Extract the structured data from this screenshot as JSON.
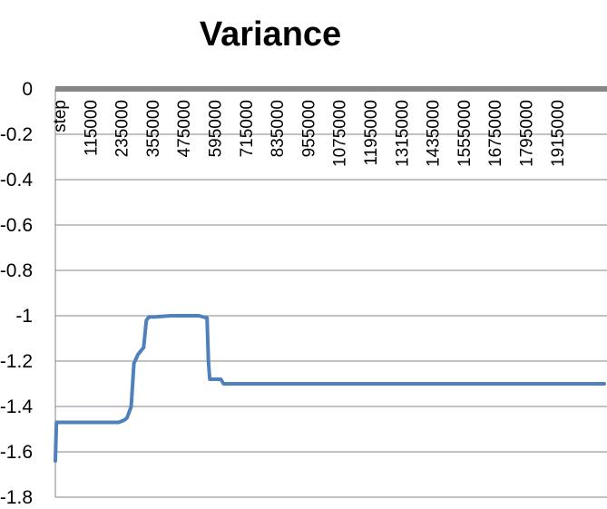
{
  "chart_data": {
    "type": "line",
    "title": "Variance",
    "xlabel": "",
    "ylabel": "",
    "ylim": [
      -1.8,
      0
    ],
    "y_ticks": [
      "0",
      "-0.2",
      "-0.4",
      "-0.6",
      "-0.8",
      "-1",
      "-1.2",
      "-1.4",
      "-1.6",
      "-1.8"
    ],
    "x_category_label": "step",
    "x_ticks": [
      "115000",
      "235000",
      "355000",
      "475000",
      "595000",
      "715000",
      "835000",
      "955000",
      "1075000",
      "1195000",
      "1315000",
      "1435000",
      "1555000",
      "1675000",
      "1795000",
      "1915000"
    ],
    "xlim": [
      0,
      2000000
    ],
    "grid": true,
    "legend": "none",
    "colors": {
      "series": "#4f81bd",
      "axis": "#868686",
      "grid": "#868686"
    },
    "series": [
      {
        "x": [
          0,
          4000,
          8000,
          30000,
          100000,
          200000,
          230000,
          250000,
          260000,
          275000,
          285000,
          300000,
          320000,
          330000,
          340000,
          360000,
          420000,
          520000,
          550000,
          555000,
          560000,
          570000,
          600000,
          610000,
          1000000,
          1500000,
          1990000
        ],
        "values": [
          -1.64,
          -1.47,
          -1.47,
          -1.47,
          -1.47,
          -1.47,
          -1.47,
          -1.46,
          -1.45,
          -1.4,
          -1.21,
          -1.17,
          -1.14,
          -1.02,
          -1.005,
          -1.005,
          -1.0,
          -1.0,
          -1.01,
          -1.2,
          -1.28,
          -1.28,
          -1.28,
          -1.3,
          -1.3,
          -1.3,
          -1.3
        ]
      }
    ]
  }
}
